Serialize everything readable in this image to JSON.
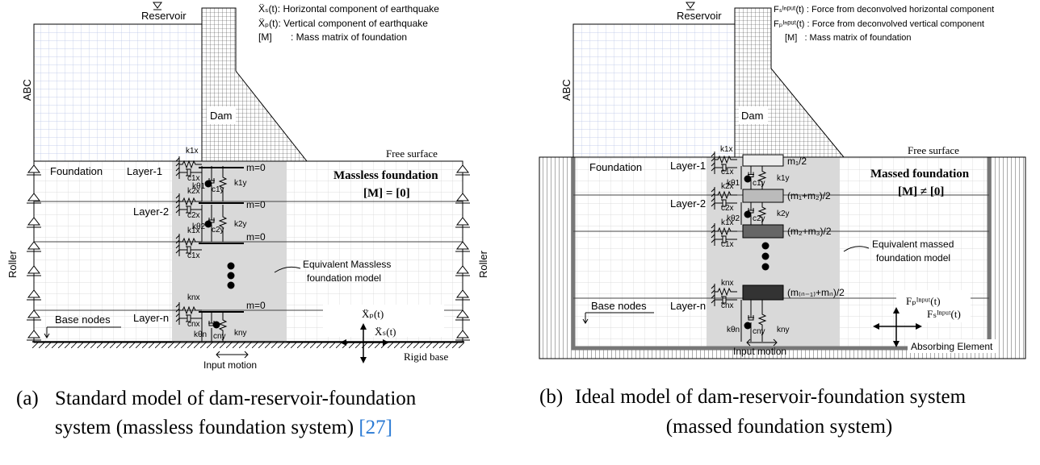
{
  "panel_a": {
    "legend": [
      "Ẍₛ(t): Horizontal component of earthquake",
      "Ẍₚ(t): Vertical component of earthquake",
      "[M]       : Mass matrix of foundation"
    ],
    "reservoir": "Reservoir",
    "abc": "ABC",
    "dam": "Dam",
    "free_surface": "Free surface",
    "foundation": "Foundation",
    "layers": [
      "Layer-1",
      "Layer-2",
      "Layer-n"
    ],
    "base_nodes": "Base nodes",
    "roller": [
      "Roller",
      "Roller"
    ],
    "title": "Massless foundation",
    "matrix": "[M] = [0]",
    "masses": [
      "m=0",
      "m=0",
      "m=0",
      "m=0"
    ],
    "springs": [
      "k1x",
      "c1x",
      "k2x",
      "c2x",
      "k1x",
      "c1x",
      "knx",
      "cnx",
      "kθ1",
      "c1y",
      "k1y",
      "kθ2",
      "c2y",
      "k2y",
      "kθn",
      "cny",
      "kny"
    ],
    "model_note": [
      "Equivalent Massless",
      "foundation model"
    ],
    "motion": [
      "Ẍₚ(t)",
      "Ẍₛ(t)"
    ],
    "input_motion": "Input motion",
    "rigid_base": "Rigid base",
    "caption": {
      "label": "(a)",
      "line1": "Standard model of dam-reservoir-foundation",
      "line2": "system (massless foundation system)",
      "ref": "[27]"
    }
  },
  "panel_b": {
    "legend": [
      "Fₛᴵⁿᵖᵘᵗ(t) : Force from deconvolved horizontal component",
      "Fₚᴵⁿᵖᵘᵗ(t) : Force from deconvolved vertical component",
      "[M]   : Mass matrix of foundation"
    ],
    "reservoir": "Reservoir",
    "abc": "ABC",
    "dam": "Dam",
    "free_surface": "Free surface",
    "foundation": "Foundation",
    "layers": [
      "Layer-1",
      "Layer-2",
      "Layer-n"
    ],
    "base_nodes": "Base nodes",
    "title": "Massed foundation",
    "matrix": "[M] ≠ [0]",
    "masses": [
      "m₁/2",
      "(m₁+m₂)/2",
      "(m₂+m₃)/2",
      "(m₍ₙ₋₁₎+mₙ)/2"
    ],
    "springs": [
      "k1x",
      "c1x",
      "k2x",
      "c2x",
      "k1x",
      "c1x",
      "knx",
      "cnx",
      "kθ1",
      "c1y",
      "k1y",
      "kθ2",
      "c2y",
      "k2y",
      "kθn",
      "cny",
      "kny"
    ],
    "model_note": [
      "Equivalent massed",
      "foundation model"
    ],
    "forces": [
      "Fₚᴵⁿᵖᵘᵗ(t)",
      "Fₛᴵⁿᵖᵘᵗ(t)"
    ],
    "input_motion": "Input motion",
    "absorbing": "Absorbing Element",
    "caption": {
      "label": "(b)",
      "line1": "Ideal model of dam-reservoir-foundation system",
      "line2": "(massed foundation system)"
    }
  }
}
